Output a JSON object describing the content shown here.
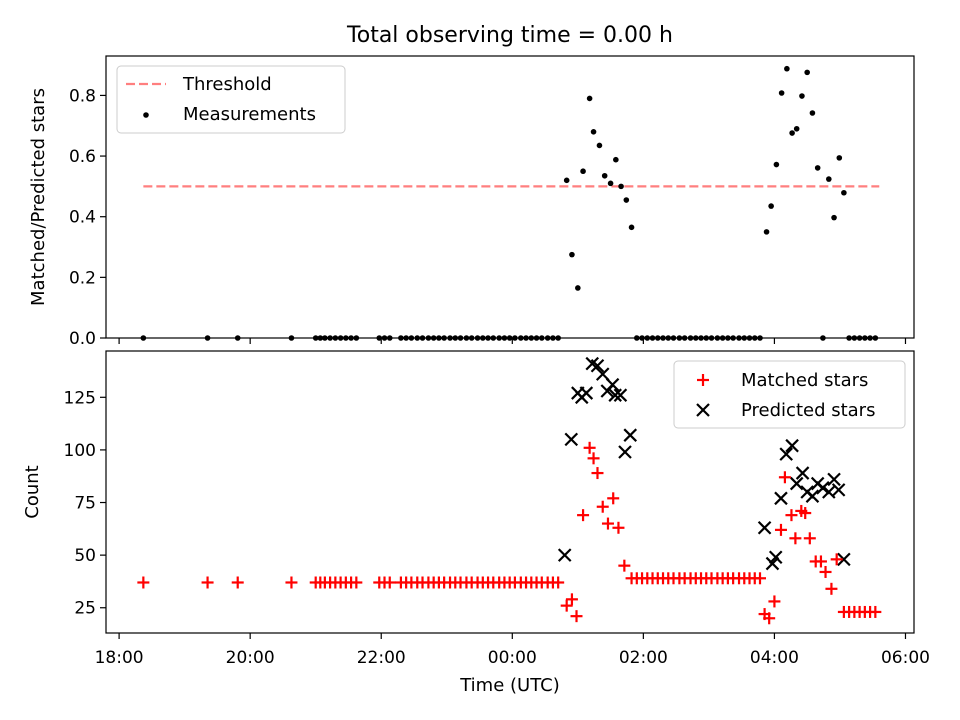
{
  "title": "Total observing time = 0.00 h",
  "chart_data": [
    {
      "type": "scatter",
      "ylabel": "Matched/Predicted stars",
      "xlim": [
        -0.2,
        12.13
      ],
      "ylim": [
        0,
        0.93
      ],
      "y_ticks": [
        0.0,
        0.2,
        0.4,
        0.6,
        0.8
      ],
      "y_tick_labels": [
        "0.0",
        "0.2",
        "0.4",
        "0.6",
        "0.8"
      ],
      "legend_position": "top-left",
      "threshold": {
        "name": "Threshold",
        "value": 0.5,
        "x_range": [
          0.37,
          11.6
        ],
        "color": "#ff7f7f"
      },
      "series": [
        {
          "name": "Measurements",
          "color": "#000000",
          "marker": "dot",
          "points": [
            [
              0.37,
              0
            ],
            [
              1.35,
              0
            ],
            [
              1.81,
              0
            ],
            [
              2.63,
              0
            ],
            [
              3.0,
              0
            ],
            [
              3.07,
              0
            ],
            [
              3.14,
              0
            ],
            [
              3.22,
              0
            ],
            [
              3.3,
              0
            ],
            [
              3.38,
              0
            ],
            [
              3.46,
              0
            ],
            [
              3.54,
              0
            ],
            [
              3.62,
              0
            ],
            [
              3.97,
              0
            ],
            [
              4.05,
              0
            ],
            [
              4.13,
              0
            ],
            [
              4.3,
              0
            ],
            [
              4.38,
              0
            ],
            [
              4.46,
              0
            ],
            [
              4.55,
              0
            ],
            [
              4.63,
              0
            ],
            [
              4.72,
              0
            ],
            [
              4.8,
              0
            ],
            [
              4.88,
              0
            ],
            [
              4.96,
              0
            ],
            [
              5.05,
              0
            ],
            [
              5.13,
              0
            ],
            [
              5.21,
              0
            ],
            [
              5.3,
              0
            ],
            [
              5.38,
              0
            ],
            [
              5.47,
              0
            ],
            [
              5.55,
              0
            ],
            [
              5.63,
              0
            ],
            [
              5.71,
              0
            ],
            [
              5.8,
              0
            ],
            [
              5.88,
              0
            ],
            [
              5.96,
              0
            ],
            [
              6.04,
              0
            ],
            [
              6.13,
              0
            ],
            [
              6.21,
              0
            ],
            [
              6.29,
              0
            ],
            [
              6.37,
              0
            ],
            [
              6.45,
              0
            ],
            [
              6.54,
              0
            ],
            [
              6.62,
              0
            ],
            [
              6.7,
              0
            ],
            [
              6.83,
              0.52
            ],
            [
              6.91,
              0.275
            ],
            [
              7.0,
              0.165
            ],
            [
              7.08,
              0.55
            ],
            [
              7.18,
              0.79
            ],
            [
              7.24,
              0.68
            ],
            [
              7.33,
              0.635
            ],
            [
              7.41,
              0.535
            ],
            [
              7.5,
              0.51
            ],
            [
              7.58,
              0.588
            ],
            [
              7.66,
              0.5
            ],
            [
              7.74,
              0.455
            ],
            [
              7.82,
              0.365
            ],
            [
              7.9,
              0
            ],
            [
              7.98,
              0
            ],
            [
              8.06,
              0
            ],
            [
              8.14,
              0
            ],
            [
              8.22,
              0
            ],
            [
              8.3,
              0
            ],
            [
              8.38,
              0
            ],
            [
              8.46,
              0
            ],
            [
              8.55,
              0
            ],
            [
              8.63,
              0
            ],
            [
              8.72,
              0
            ],
            [
              8.8,
              0
            ],
            [
              8.88,
              0
            ],
            [
              8.96,
              0
            ],
            [
              9.04,
              0
            ],
            [
              9.13,
              0
            ],
            [
              9.21,
              0
            ],
            [
              9.29,
              0
            ],
            [
              9.37,
              0
            ],
            [
              9.46,
              0
            ],
            [
              9.54,
              0
            ],
            [
              9.62,
              0
            ],
            [
              9.7,
              0
            ],
            [
              9.78,
              0
            ],
            [
              9.88,
              0.35
            ],
            [
              9.95,
              0.435
            ],
            [
              10.03,
              0.572
            ],
            [
              10.11,
              0.808
            ],
            [
              10.19,
              0.888
            ],
            [
              10.27,
              0.676
            ],
            [
              10.34,
              0.69
            ],
            [
              10.42,
              0.798
            ],
            [
              10.5,
              0.876
            ],
            [
              10.58,
              0.742
            ],
            [
              10.66,
              0.561
            ],
            [
              10.74,
              0
            ],
            [
              10.83,
              0.524
            ],
            [
              10.91,
              0.397
            ],
            [
              10.99,
              0.594
            ],
            [
              11.06,
              0.479
            ],
            [
              11.14,
              0
            ],
            [
              11.22,
              0
            ],
            [
              11.3,
              0
            ],
            [
              11.38,
              0
            ],
            [
              11.46,
              0
            ],
            [
              11.54,
              0
            ]
          ]
        }
      ]
    },
    {
      "type": "scatter",
      "xlabel": "Time (UTC)",
      "ylabel": "Count",
      "xlim": [
        -0.2,
        12.13
      ],
      "ylim": [
        13,
        147
      ],
      "x_ticks": [
        0,
        2,
        4,
        6,
        8,
        10,
        12
      ],
      "x_tick_labels": [
        "18:00",
        "20:00",
        "22:00",
        "00:00",
        "02:00",
        "04:00",
        "06:00"
      ],
      "y_ticks": [
        25,
        50,
        75,
        100,
        125
      ],
      "y_tick_labels": [
        "25",
        "50",
        "75",
        "100",
        "125"
      ],
      "legend_position": "top-right",
      "series": [
        {
          "name": "Matched stars",
          "color": "#ff0000",
          "marker": "plus",
          "points": [
            [
              0.37,
              37
            ],
            [
              1.35,
              37
            ],
            [
              1.81,
              37
            ],
            [
              2.63,
              37
            ],
            [
              3.0,
              37
            ],
            [
              3.07,
              37
            ],
            [
              3.14,
              37
            ],
            [
              3.22,
              37
            ],
            [
              3.3,
              37
            ],
            [
              3.38,
              37
            ],
            [
              3.46,
              37
            ],
            [
              3.54,
              37
            ],
            [
              3.62,
              37
            ],
            [
              3.97,
              37
            ],
            [
              4.05,
              37
            ],
            [
              4.13,
              37
            ],
            [
              4.3,
              37
            ],
            [
              4.38,
              37
            ],
            [
              4.46,
              37
            ],
            [
              4.55,
              37
            ],
            [
              4.63,
              37
            ],
            [
              4.72,
              37
            ],
            [
              4.8,
              37
            ],
            [
              4.88,
              37
            ],
            [
              4.96,
              37
            ],
            [
              5.05,
              37
            ],
            [
              5.13,
              37
            ],
            [
              5.21,
              37
            ],
            [
              5.3,
              37
            ],
            [
              5.38,
              37
            ],
            [
              5.47,
              37
            ],
            [
              5.55,
              37
            ],
            [
              5.63,
              37
            ],
            [
              5.71,
              37
            ],
            [
              5.8,
              37
            ],
            [
              5.88,
              37
            ],
            [
              5.96,
              37
            ],
            [
              6.04,
              37
            ],
            [
              6.13,
              37
            ],
            [
              6.21,
              37
            ],
            [
              6.29,
              37
            ],
            [
              6.37,
              37
            ],
            [
              6.45,
              37
            ],
            [
              6.54,
              37
            ],
            [
              6.62,
              37
            ],
            [
              6.7,
              37
            ],
            [
              6.83,
              26
            ],
            [
              6.91,
              29
            ],
            [
              6.98,
              21
            ],
            [
              7.08,
              69
            ],
            [
              7.18,
              101
            ],
            [
              7.24,
              96
            ],
            [
              7.3,
              89
            ],
            [
              7.38,
              73
            ],
            [
              7.46,
              65
            ],
            [
              7.54,
              77
            ],
            [
              7.62,
              63
            ],
            [
              7.71,
              45
            ],
            [
              7.82,
              39
            ],
            [
              7.9,
              39
            ],
            [
              7.98,
              39
            ],
            [
              8.06,
              39
            ],
            [
              8.14,
              39
            ],
            [
              8.22,
              39
            ],
            [
              8.3,
              39
            ],
            [
              8.38,
              39
            ],
            [
              8.46,
              39
            ],
            [
              8.55,
              39
            ],
            [
              8.63,
              39
            ],
            [
              8.72,
              39
            ],
            [
              8.8,
              39
            ],
            [
              8.88,
              39
            ],
            [
              8.96,
              39
            ],
            [
              9.04,
              39
            ],
            [
              9.13,
              39
            ],
            [
              9.21,
              39
            ],
            [
              9.29,
              39
            ],
            [
              9.37,
              39
            ],
            [
              9.46,
              39
            ],
            [
              9.54,
              39
            ],
            [
              9.62,
              39
            ],
            [
              9.7,
              39
            ],
            [
              9.78,
              39
            ],
            [
              9.85,
              22
            ],
            [
              9.92,
              20
            ],
            [
              10.0,
              28
            ],
            [
              10.1,
              62
            ],
            [
              10.16,
              87
            ],
            [
              10.26,
              69
            ],
            [
              10.32,
              58
            ],
            [
              10.41,
              71
            ],
            [
              10.47,
              70
            ],
            [
              10.54,
              58
            ],
            [
              10.63,
              47
            ],
            [
              10.71,
              47
            ],
            [
              10.78,
              42
            ],
            [
              10.87,
              34
            ],
            [
              10.95,
              48
            ],
            [
              11.06,
              23
            ],
            [
              11.14,
              23
            ],
            [
              11.22,
              23
            ],
            [
              11.3,
              23
            ],
            [
              11.38,
              23
            ],
            [
              11.46,
              23
            ],
            [
              11.54,
              23
            ]
          ]
        },
        {
          "name": "Predicted stars",
          "color": "#000000",
          "marker": "x",
          "points": [
            [
              6.8,
              50
            ],
            [
              6.9,
              105
            ],
            [
              7.0,
              127
            ],
            [
              7.06,
              125
            ],
            [
              7.13,
              127
            ],
            [
              7.22,
              141
            ],
            [
              7.3,
              140
            ],
            [
              7.38,
              136
            ],
            [
              7.45,
              128
            ],
            [
              7.53,
              131
            ],
            [
              7.57,
              126
            ],
            [
              7.65,
              126
            ],
            [
              7.72,
              99
            ],
            [
              7.8,
              107
            ],
            [
              9.85,
              63
            ],
            [
              9.97,
              46
            ],
            [
              10.02,
              49
            ],
            [
              10.1,
              77
            ],
            [
              10.18,
              98
            ],
            [
              10.27,
              102
            ],
            [
              10.34,
              84
            ],
            [
              10.43,
              89
            ],
            [
              10.5,
              80
            ],
            [
              10.58,
              78
            ],
            [
              10.66,
              84
            ],
            [
              10.74,
              82
            ],
            [
              10.83,
              80
            ],
            [
              10.91,
              86
            ],
            [
              10.98,
              81
            ],
            [
              11.06,
              48
            ]
          ]
        }
      ]
    }
  ]
}
